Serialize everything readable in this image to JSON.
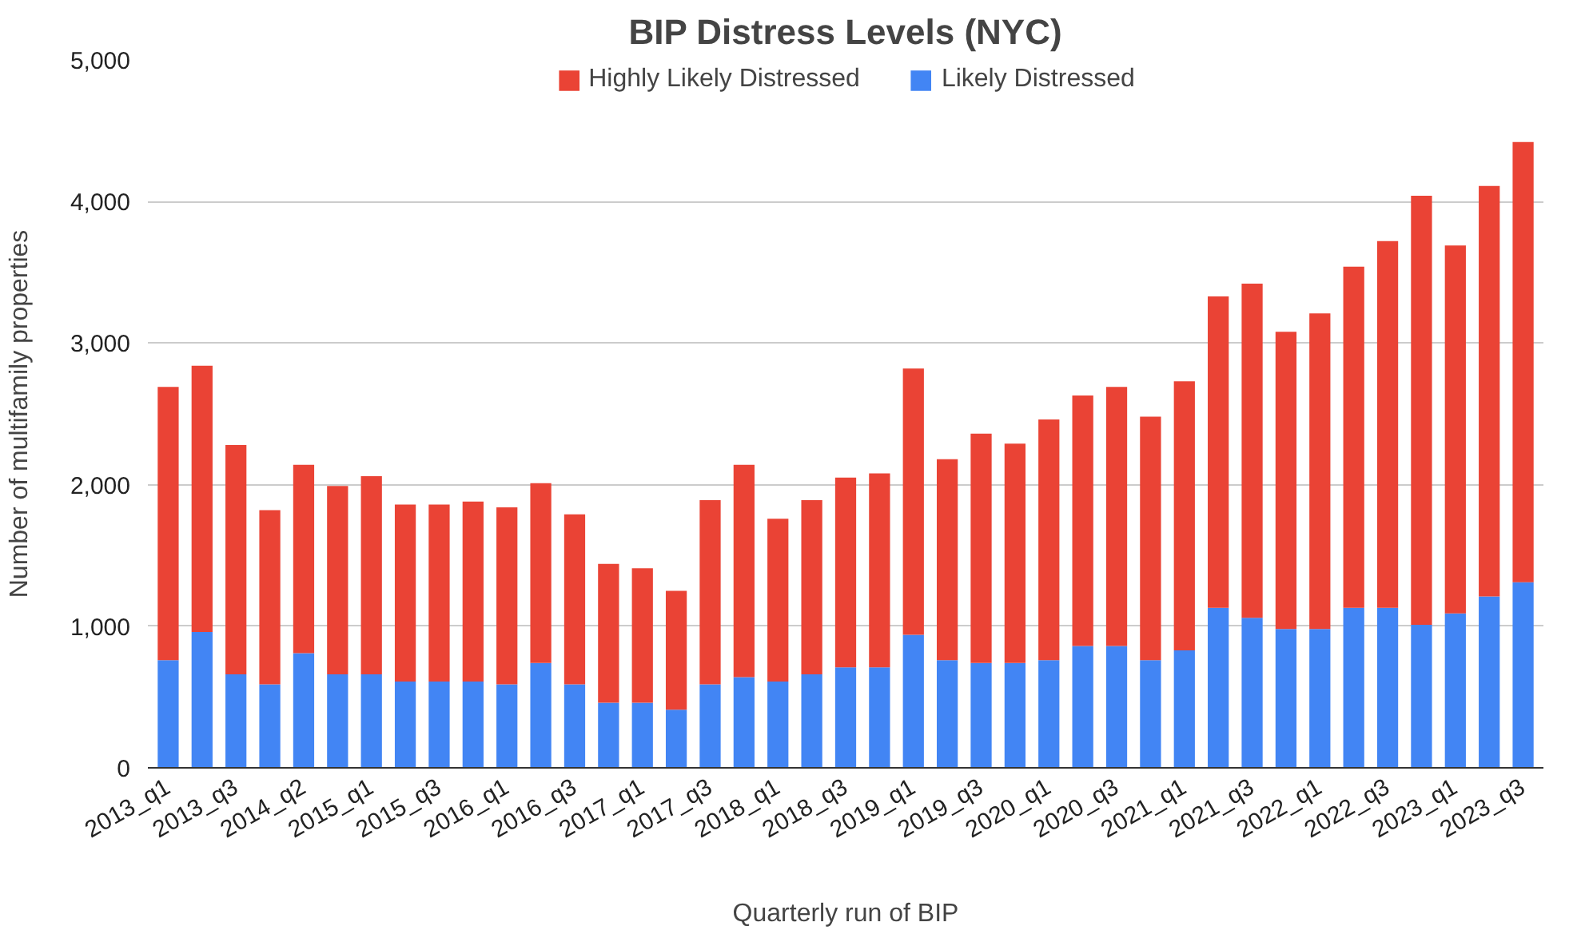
{
  "chart_data": {
    "type": "bar",
    "title": "BIP Distress Levels (NYC)",
    "xlabel": "Quarterly run of BIP",
    "ylabel": "Number of multifamily properties",
    "categories": [
      "2013_q1",
      null,
      "2013_q3",
      null,
      "2014_q2",
      null,
      "2015_q1",
      null,
      "2015_q3",
      null,
      "2016_q1",
      null,
      "2016_q3",
      null,
      "2017_q1",
      null,
      "2017_q3",
      null,
      "2018_q1",
      null,
      "2018_q3",
      null,
      "2019_q1",
      null,
      "2019_q3",
      null,
      "2020_q1",
      null,
      "2020_q3",
      null,
      "2021_q1",
      null,
      "2021_q3",
      null,
      "2022_q1",
      null,
      "2022_q3",
      null,
      "2023_q1",
      null,
      "2023_q3"
    ],
    "stacked": true,
    "series": [
      {
        "name": "Likely Distressed",
        "color": "#4285f4",
        "values": [
          760,
          960,
          660,
          590,
          810,
          660,
          660,
          610,
          610,
          610,
          590,
          740,
          590,
          460,
          460,
          410,
          590,
          640,
          610,
          660,
          710,
          710,
          940,
          760,
          740,
          740,
          760,
          860,
          860,
          760,
          830,
          1130,
          1060,
          980,
          980,
          1130,
          1130,
          1010,
          1090,
          1210,
          1310
        ]
      },
      {
        "name": "Highly Likely Distressed",
        "color": "#ea4335",
        "values": [
          1930,
          1880,
          1620,
          1230,
          1330,
          1330,
          1400,
          1250,
          1250,
          1270,
          1250,
          1270,
          1200,
          980,
          950,
          840,
          1300,
          1500,
          1150,
          1230,
          1340,
          1370,
          1880,
          1420,
          1620,
          1550,
          1700,
          1770,
          1830,
          1720,
          1900,
          2200,
          2360,
          2100,
          2230,
          2410,
          2590,
          3030,
          2600,
          2900,
          3110
        ]
      }
    ],
    "ylim": [
      0,
      5000
    ],
    "yticks": [
      {
        "value": 0,
        "label": "0"
      },
      {
        "value": 1000,
        "label": "1,000"
      },
      {
        "value": 2000,
        "label": "2,000"
      },
      {
        "value": 3000,
        "label": "3,000"
      },
      {
        "value": 4000,
        "label": "4,000"
      },
      {
        "value": 5000,
        "label": "5,000"
      }
    ],
    "grid": "y",
    "legend": "top"
  }
}
